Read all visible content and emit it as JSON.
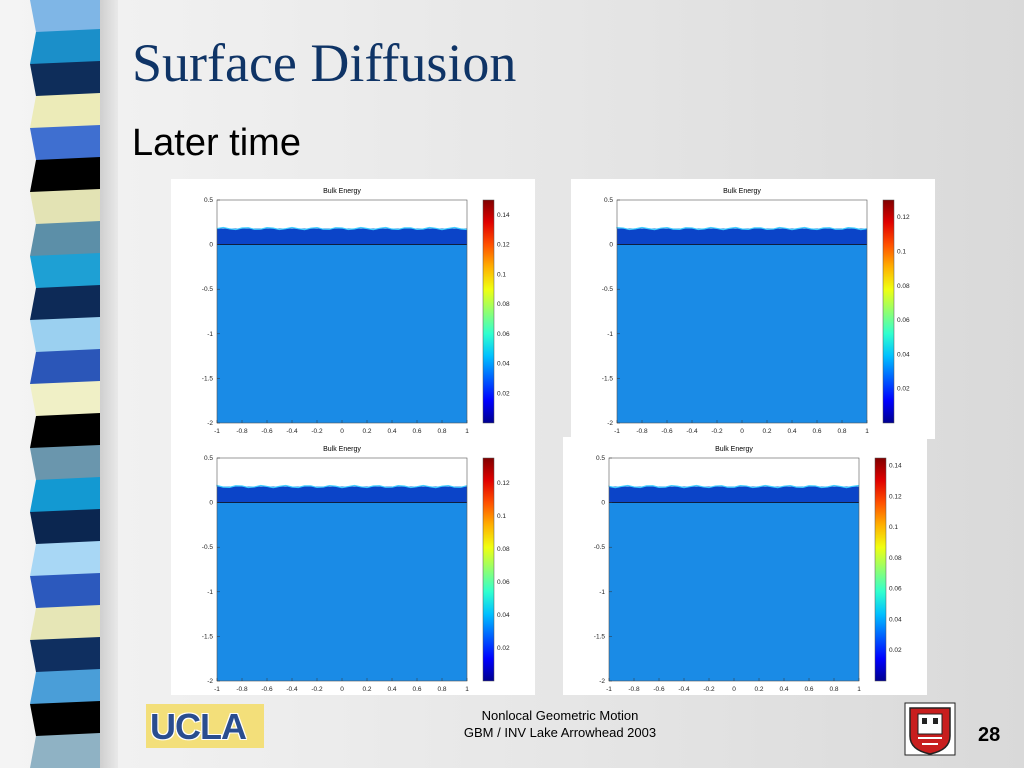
{
  "slide": {
    "title": "Surface Diffusion",
    "subtitle": "Later time",
    "footer_line1": "Nonlocal Geometric Motion",
    "footer_line2": "GBM / INV Lake Arrowhead 2003",
    "page_number": "28",
    "logo_text": "UCLA"
  },
  "colors": {
    "title": "#0f3466",
    "stripe": [
      "#7fb6e6",
      "#1b8fc9",
      "#0e2d5a",
      "#ecebb8",
      "#3f6fd0",
      "#000000",
      "#e3e3b4",
      "#5c8fa8",
      "#1ea0d4",
      "#0d2a57",
      "#9bd0f0",
      "#2b56b8",
      "#f0f0c6",
      "#000000",
      "#6a96ad",
      "#1399d2",
      "#0b2650",
      "#a8d7f5",
      "#2c59bd",
      "#e6e6b6",
      "#0f2f60",
      "#4a9ed8",
      "#000000",
      "#8fb2c4"
    ],
    "field": "#1a8be6",
    "film": "#0b44c8"
  },
  "chart_data": [
    {
      "type": "heatmap",
      "title": "Bulk Energy",
      "xlim": [
        -1,
        1
      ],
      "ylim": [
        -2,
        0.5
      ],
      "x_ticks": [
        "-1",
        "-0.8",
        "-0.6",
        "-0.4",
        "-0.2",
        "0",
        "0.2",
        "0.4",
        "0.6",
        "0.8",
        "1"
      ],
      "y_ticks": [
        "0.5",
        "0",
        "-0.5",
        "-1",
        "-1.5",
        "-2"
      ],
      "colorbar_range": [
        0,
        0.15
      ],
      "colorbar_ticks": [
        "0.14",
        "0.12",
        "0.1",
        "0.08",
        "0.06",
        "0.04",
        "0.02"
      ]
    },
    {
      "type": "heatmap",
      "title": "Bulk Energy",
      "xlim": [
        -1,
        1
      ],
      "ylim": [
        -2,
        0.5
      ],
      "x_ticks": [
        "-1",
        "-0.8",
        "-0.6",
        "-0.4",
        "-0.2",
        "0",
        "0.2",
        "0.4",
        "0.6",
        "0.8",
        "1"
      ],
      "y_ticks": [
        "0.5",
        "0",
        "-0.5",
        "-1",
        "-1.5",
        "-2"
      ],
      "colorbar_range": [
        0,
        0.13
      ],
      "colorbar_ticks": [
        "0.12",
        "0.1",
        "0.08",
        "0.06",
        "0.04",
        "0.02"
      ]
    },
    {
      "type": "heatmap",
      "title": "Bulk Energy",
      "xlim": [
        -1,
        1
      ],
      "ylim": [
        -2,
        0.5
      ],
      "x_ticks": [
        "-1",
        "-0.8",
        "-0.6",
        "-0.4",
        "-0.2",
        "0",
        "0.2",
        "0.4",
        "0.6",
        "0.8",
        "1"
      ],
      "y_ticks": [
        "0.5",
        "0",
        "-0.5",
        "-1",
        "-1.5",
        "-2"
      ],
      "colorbar_range": [
        0,
        0.135
      ],
      "colorbar_ticks": [
        "0.12",
        "0.1",
        "0.08",
        "0.06",
        "0.04",
        "0.02"
      ]
    },
    {
      "type": "heatmap",
      "title": "Bulk Energy",
      "xlim": [
        -1,
        1
      ],
      "ylim": [
        -2,
        0.5
      ],
      "x_ticks": [
        "-1",
        "-0.8",
        "-0.6",
        "-0.4",
        "-0.2",
        "0",
        "0.2",
        "0.4",
        "0.6",
        "0.8",
        "1"
      ],
      "y_ticks": [
        "0.5",
        "0",
        "-0.5",
        "-1",
        "-1.5",
        "-2"
      ],
      "colorbar_range": [
        0,
        0.145
      ],
      "colorbar_ticks": [
        "0.14",
        "0.12",
        "0.1",
        "0.08",
        "0.06",
        "0.04",
        "0.02"
      ]
    }
  ]
}
